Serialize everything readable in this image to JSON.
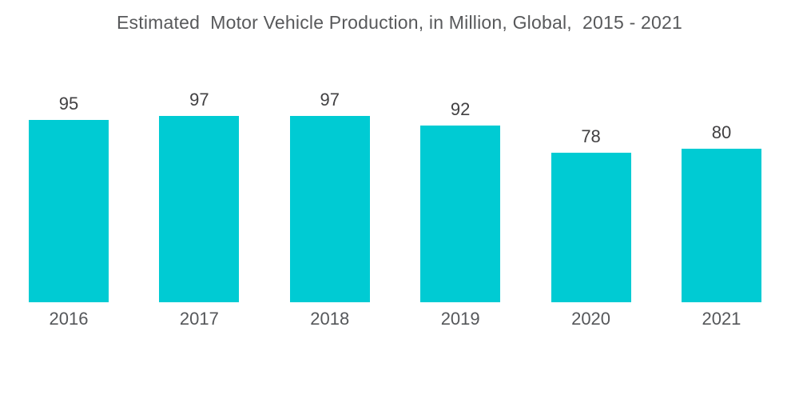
{
  "page": {
    "background_color": "#ffffff"
  },
  "chart_data": {
    "type": "bar",
    "title": "Estimated  Motor Vehicle Production, in Million, Global,  2015 - 2021",
    "categories": [
      "2016",
      "2017",
      "2018",
      "2019",
      "2020",
      "2021"
    ],
    "values": [
      95,
      97,
      97,
      92,
      78,
      80
    ],
    "xlabel": "",
    "ylabel": "",
    "ylim": [
      0,
      100
    ],
    "bar_color": "#00cbd3",
    "title_color": "#58595b",
    "value_label_color": "#414042",
    "category_label_color": "#55575a",
    "axes_visible": false,
    "gridlines": false,
    "legend": false,
    "value_labels_position": "above-bars"
  }
}
